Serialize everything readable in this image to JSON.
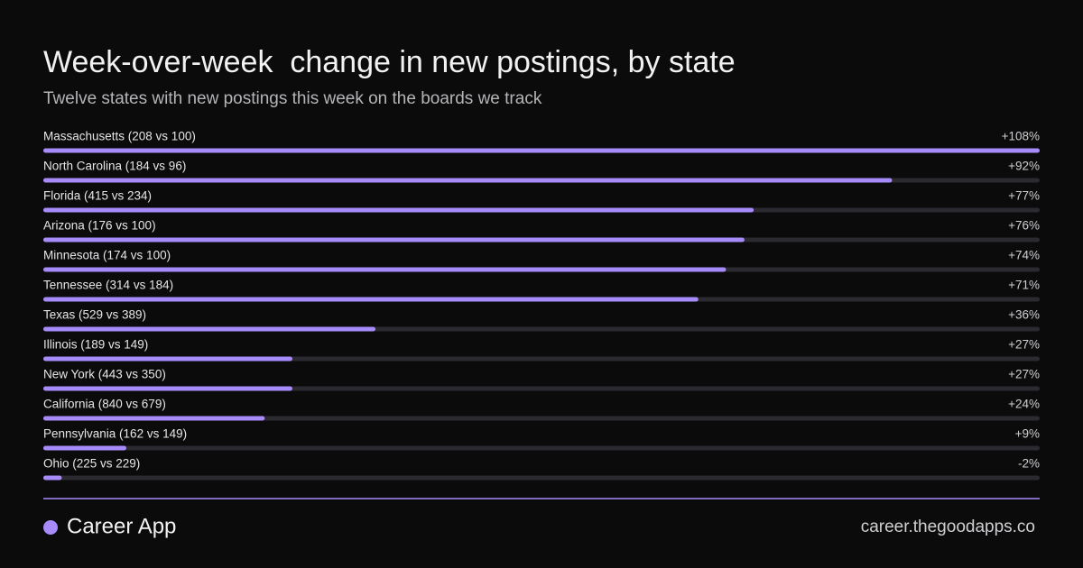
{
  "chart_data": {
    "type": "hbar",
    "title": "Week-over-week  change in new postings, by state",
    "subtitle": "Twelve states with new postings this week on the boards we track",
    "categories": [
      "Massachusetts (208 vs 100)",
      "North Carolina (184 vs 96)",
      "Florida (415 vs 234)",
      "Arizona (176 vs 100)",
      "Minnesota (174 vs 100)",
      "Tennessee (314 vs 184)",
      "Texas (529 vs 389)",
      "Illinois (189 vs 149)",
      "New York (443 vs 350)",
      "California (840 vs 679)",
      "Pennsylvania (162 vs 149)",
      "Ohio (225 vs 229)"
    ],
    "values": [
      108,
      92,
      77,
      76,
      74,
      71,
      36,
      27,
      27,
      24,
      9,
      -2
    ],
    "value_labels": [
      "+108%",
      "+92%",
      "+77%",
      "+76%",
      "+74%",
      "+71%",
      "+36%",
      "+27%",
      "+27%",
      "+24%",
      "+9%",
      "-2%"
    ],
    "color": "#a78bfa"
  },
  "footer": {
    "brand": "Career App",
    "url": "career.thegoodapps.co"
  }
}
